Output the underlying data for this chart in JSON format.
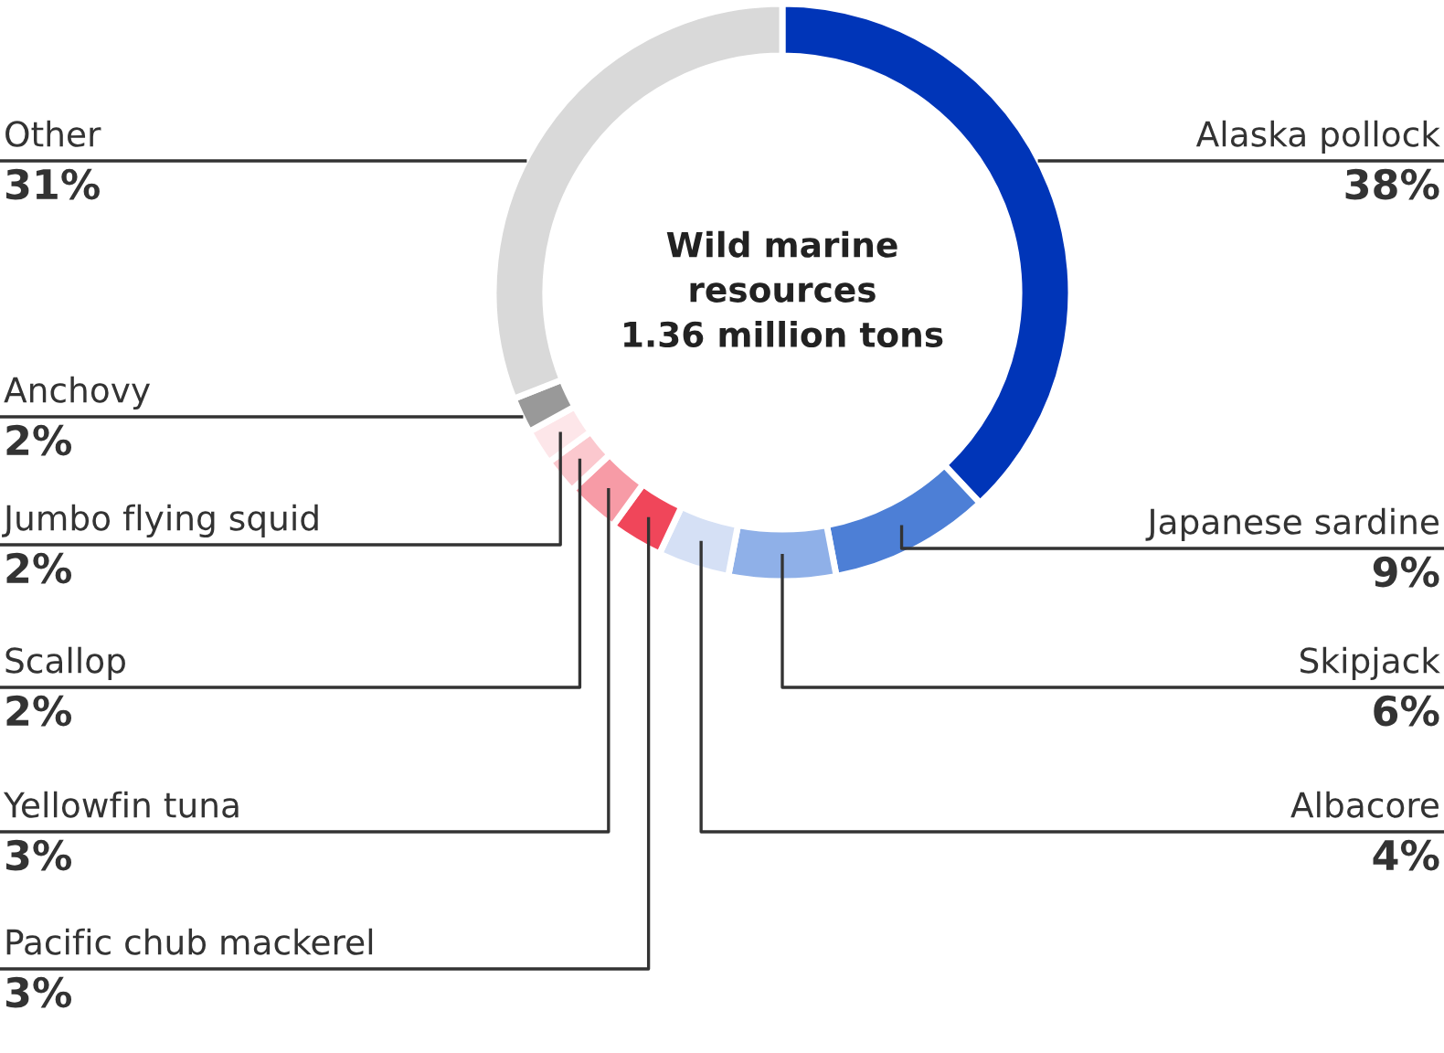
{
  "chart_data": {
    "type": "donut",
    "title": "Wild marine\nresources\n1.36 million tons",
    "categories": [
      "Alaska pollock",
      "Japanese sardine",
      "Skipjack",
      "Albacore",
      "Pacific chub mackerel",
      "Yellowfin tuna",
      "Scallop",
      "Jumbo flying squid",
      "Anchovy",
      "Other"
    ],
    "values": [
      38,
      9,
      6,
      4,
      3,
      3,
      2,
      2,
      2,
      31
    ],
    "value_labels": [
      "38%",
      "9%",
      "6%",
      "4%",
      "3%",
      "3%",
      "2%",
      "2%",
      "2%",
      "31%"
    ],
    "colors": [
      "#0035b8",
      "#4d7fd6",
      "#8fb0e8",
      "#d5e0f5",
      "#f0465a",
      "#f79ba6",
      "#fbc8ce",
      "#fde6e9",
      "#999999",
      "#d9d9d9"
    ],
    "legend": false
  }
}
